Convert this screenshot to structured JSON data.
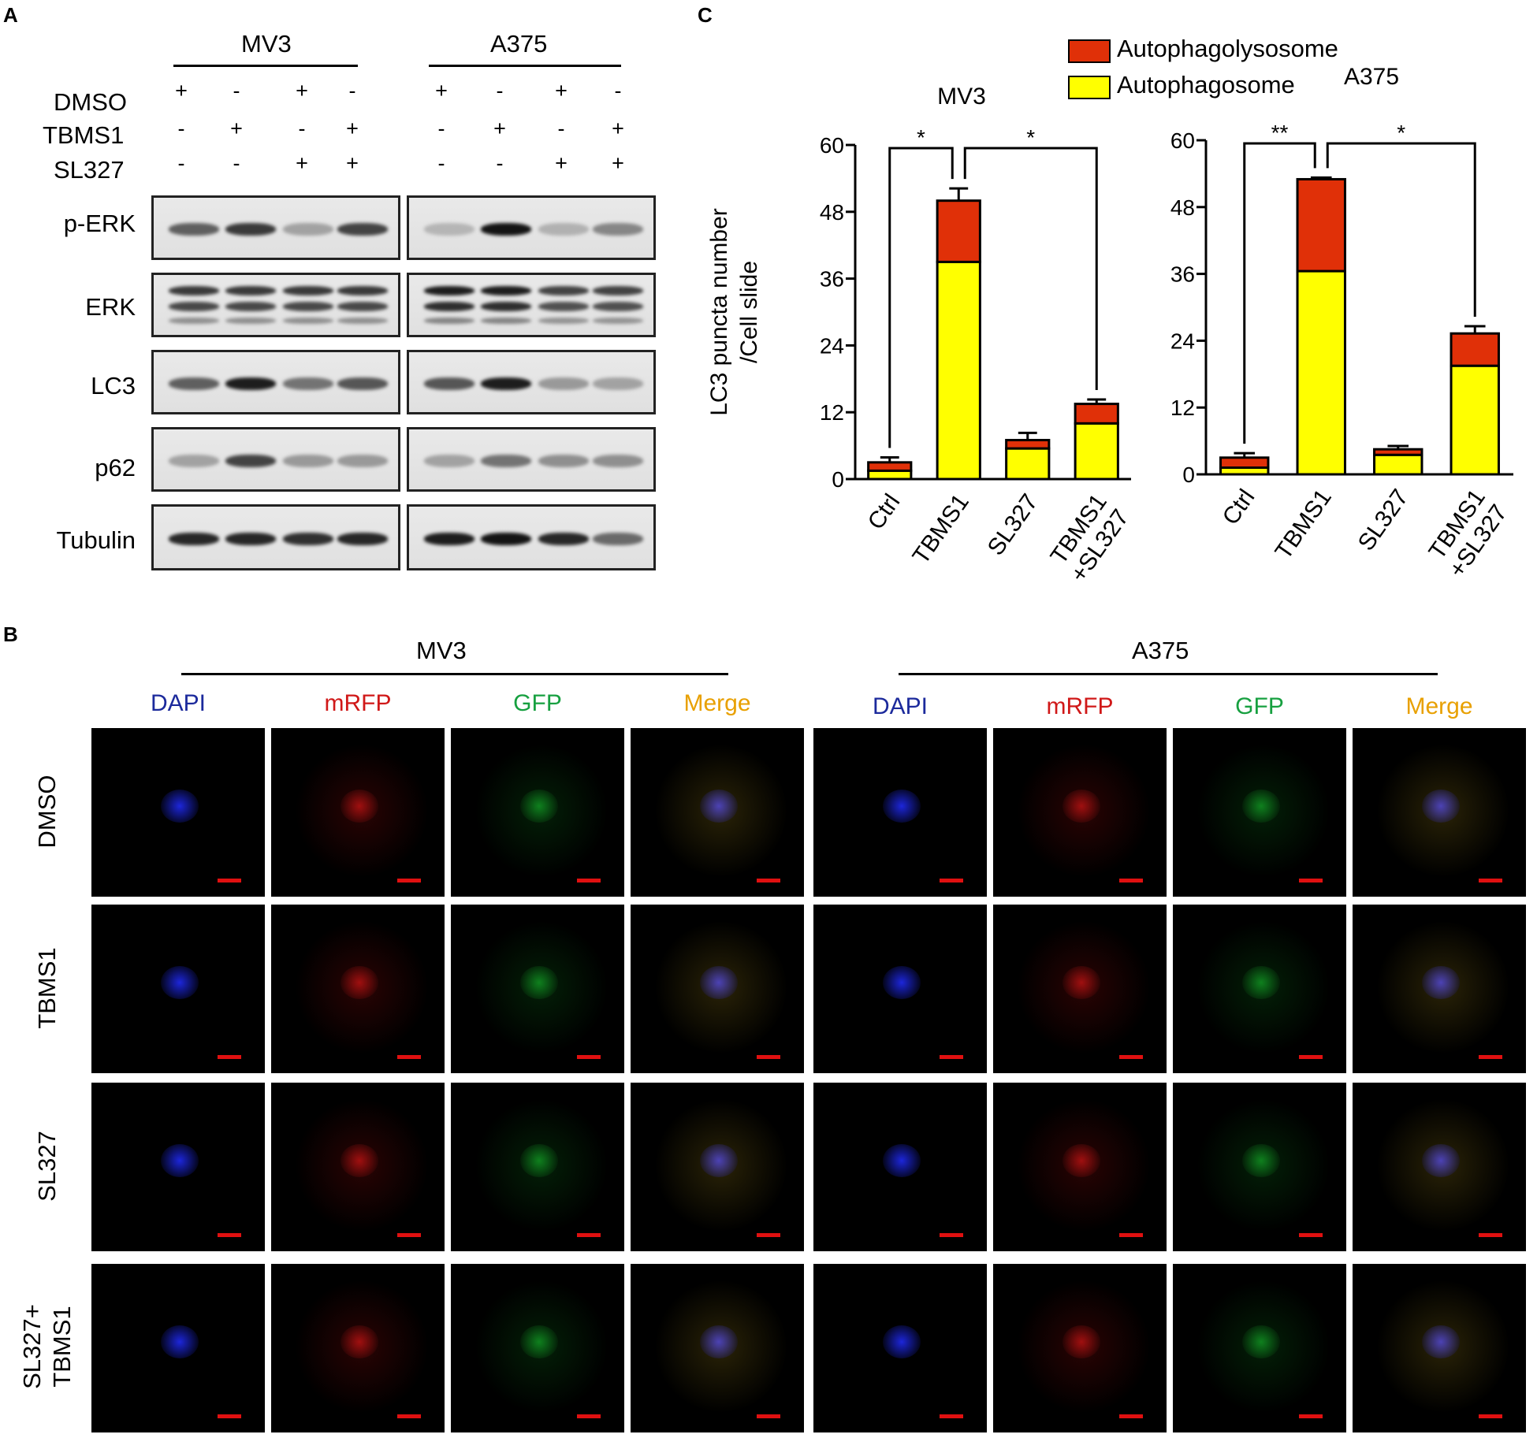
{
  "panel_labels": {
    "a": "A",
    "b": "B",
    "c": "C"
  },
  "western": {
    "cell_lines": [
      "MV3",
      "A375"
    ],
    "treatments": [
      {
        "name": "DMSO",
        "signs": [
          "+",
          "-",
          "+",
          "-",
          "+",
          "-",
          "+",
          "-"
        ]
      },
      {
        "name": "TBMS1",
        "signs": [
          "-",
          "+",
          "-",
          "+",
          "-",
          "+",
          "-",
          "+"
        ]
      },
      {
        "name": "SL327",
        "signs": [
          "-",
          "-",
          "+",
          "+",
          "-",
          "-",
          "+",
          "+"
        ]
      }
    ],
    "proteins": [
      "p-ERK",
      "ERK",
      "LC3",
      "p62",
      "Tubulin"
    ]
  },
  "microscopy": {
    "cell_lines": [
      "MV3",
      "A375"
    ],
    "channels": [
      {
        "name": "DAPI",
        "color": "#1c2a9c"
      },
      {
        "name": "mRFP",
        "color": "#d01818"
      },
      {
        "name": "GFP",
        "color": "#17a040"
      },
      {
        "name": "Merge",
        "color": "#e8a000"
      }
    ],
    "rows": [
      "DMSO",
      "TBMS1",
      "SL327",
      "SL327+\nTBMS1"
    ]
  },
  "chart_data": [
    {
      "type": "bar",
      "stacked": true,
      "title": "MV3",
      "ylabel": "LC3 puncta number\n/Cell slide",
      "categories": [
        "Ctrl",
        "TBMS1",
        "SL327",
        "TBMS1\n+SL327"
      ],
      "ylim": [
        0,
        60
      ],
      "yticks": [
        0,
        12,
        24,
        36,
        48,
        60
      ],
      "series": [
        {
          "name": "Autophagosome",
          "color": "#ffff00",
          "values": [
            1.5,
            39,
            5.5,
            10
          ],
          "errors": [
            0.8,
            1.2,
            0.8,
            0.8
          ]
        },
        {
          "name": "Autophagolysosome",
          "color": "#e03008",
          "values": [
            1.5,
            11,
            1.5,
            3.5
          ],
          "errors": [
            0.9,
            2.2,
            1.3,
            0.8
          ]
        }
      ],
      "significance": [
        {
          "from": 0,
          "to": 1,
          "label": "*"
        },
        {
          "from": 1,
          "to": 3,
          "label": "*"
        }
      ]
    },
    {
      "type": "bar",
      "stacked": true,
      "title": "A375",
      "ylabel": "",
      "categories": [
        "Ctrl",
        "TBMS1",
        "SL327",
        "TBMS1\n+SL327"
      ],
      "ylim": [
        0,
        60
      ],
      "yticks": [
        0,
        12,
        24,
        36,
        48,
        60
      ],
      "series": [
        {
          "name": "Autophagosome",
          "color": "#ffff00",
          "values": [
            1.2,
            36.5,
            3.5,
            19.5
          ],
          "errors": [
            0.5,
            0.4,
            0.5,
            1.3
          ]
        },
        {
          "name": "Autophagolysosome",
          "color": "#e03008",
          "values": [
            1.8,
            16.5,
            1.0,
            5.8
          ],
          "errors": [
            0.8,
            0.3,
            0.6,
            1.3
          ]
        }
      ],
      "significance": [
        {
          "from": 0,
          "to": 1,
          "label": "**"
        },
        {
          "from": 1,
          "to": 3,
          "label": "*"
        }
      ]
    }
  ],
  "legend": [
    {
      "name": "Autophagolysosome",
      "color": "#e03008"
    },
    {
      "name": "Autophagosome",
      "color": "#ffff00"
    }
  ]
}
